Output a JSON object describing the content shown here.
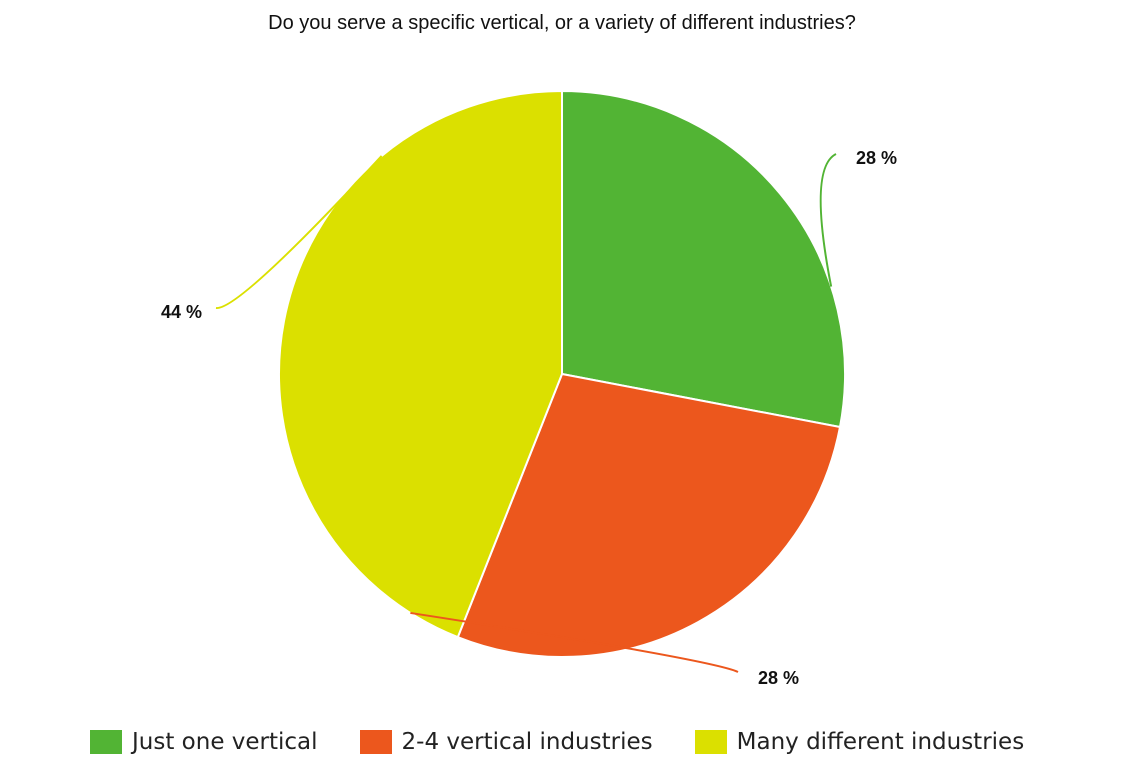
{
  "chart_data": {
    "type": "pie",
    "title": "Do you serve a specific vertical, or a variety of different industries?",
    "legend_position": "bottom",
    "slices": [
      {
        "name": "Just one vertical",
        "value": 28,
        "label": "28 %",
        "color": "#52b434"
      },
      {
        "name": "2-4 vertical industries",
        "value": 28,
        "label": "28 %",
        "color": "#ec571d"
      },
      {
        "name": "Many different industries",
        "value": 44,
        "label": "44 %",
        "color": "#dbe000"
      }
    ]
  }
}
